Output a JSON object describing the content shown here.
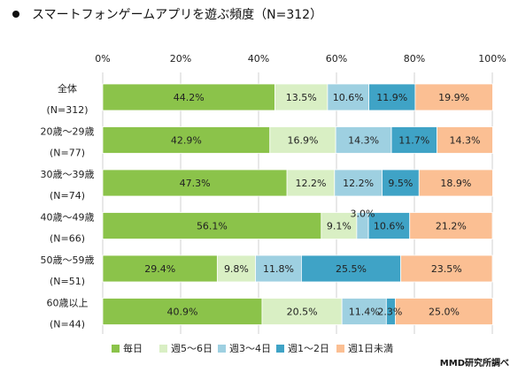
{
  "title": "スマートフォンゲームアプリを遊ぶ頻度（N=312）",
  "source": "MMD研究所調べ",
  "chart_data": {
    "type": "bar",
    "orientation": "horizontal",
    "stacked": true,
    "xlim": [
      0,
      100
    ],
    "x_ticks": [
      "0%",
      "20%",
      "40%",
      "60%",
      "80%",
      "100%"
    ],
    "grid": true,
    "legend_position": "bottom",
    "categories": [
      {
        "line1": "全体",
        "line2": "(N=312)"
      },
      {
        "line1": "20歳～29歳",
        "line2": "(N=77)"
      },
      {
        "line1": "30歳～39歳",
        "line2": "(N=74)"
      },
      {
        "line1": "40歳～49歳",
        "line2": "(N=66)"
      },
      {
        "line1": "50歳～59歳",
        "line2": "(N=51)"
      },
      {
        "line1": "60歳以上",
        "line2": "(N=44)"
      }
    ],
    "series": [
      {
        "name": "毎日",
        "color": "#8bc34a",
        "values": [
          44.2,
          42.9,
          47.3,
          56.1,
          29.4,
          40.9
        ]
      },
      {
        "name": "週5～6日",
        "color": "#d9efc4",
        "values": [
          13.5,
          16.9,
          12.2,
          9.1,
          9.8,
          20.5
        ]
      },
      {
        "name": "週3～4日",
        "color": "#9ed0e1",
        "values": [
          10.6,
          14.3,
          12.2,
          3.0,
          11.8,
          11.4
        ]
      },
      {
        "name": "週1～2日",
        "color": "#3fa3c6",
        "values": [
          11.9,
          11.7,
          9.5,
          10.6,
          25.5,
          2.3
        ]
      },
      {
        "name": "週1日未満",
        "color": "#fbbf93",
        "values": [
          19.9,
          14.3,
          18.9,
          21.2,
          23.5,
          25.0
        ]
      }
    ]
  }
}
